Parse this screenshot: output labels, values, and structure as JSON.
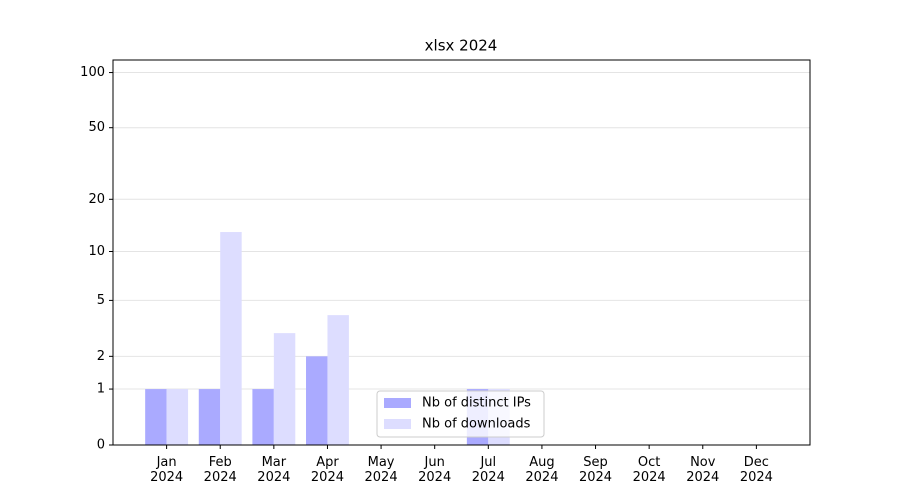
{
  "chart_data": {
    "type": "bar",
    "title": "xlsx 2024",
    "categories": [
      "Jan 2024",
      "Feb 2024",
      "Mar 2024",
      "Apr 2024",
      "May 2024",
      "Jun 2024",
      "Jul 2024",
      "Aug 2024",
      "Sep 2024",
      "Oct 2024",
      "Nov 2024",
      "Dec 2024"
    ],
    "series": [
      {
        "name": "Nb of distinct IPs",
        "color": "#aaaaff",
        "values": [
          1,
          1,
          1,
          2,
          0,
          0,
          1,
          0,
          0,
          0,
          0,
          0
        ]
      },
      {
        "name": "Nb of downloads",
        "color": "#ddddff",
        "values": [
          1,
          13,
          3,
          4,
          0,
          0,
          1,
          0,
          0,
          0,
          0,
          0
        ]
      }
    ],
    "yscale": "log1p",
    "ylim": [
      0,
      117
    ],
    "yticks": [
      0,
      1,
      2,
      5,
      10,
      20,
      50,
      100
    ],
    "grid": true,
    "legend": "lower center"
  }
}
